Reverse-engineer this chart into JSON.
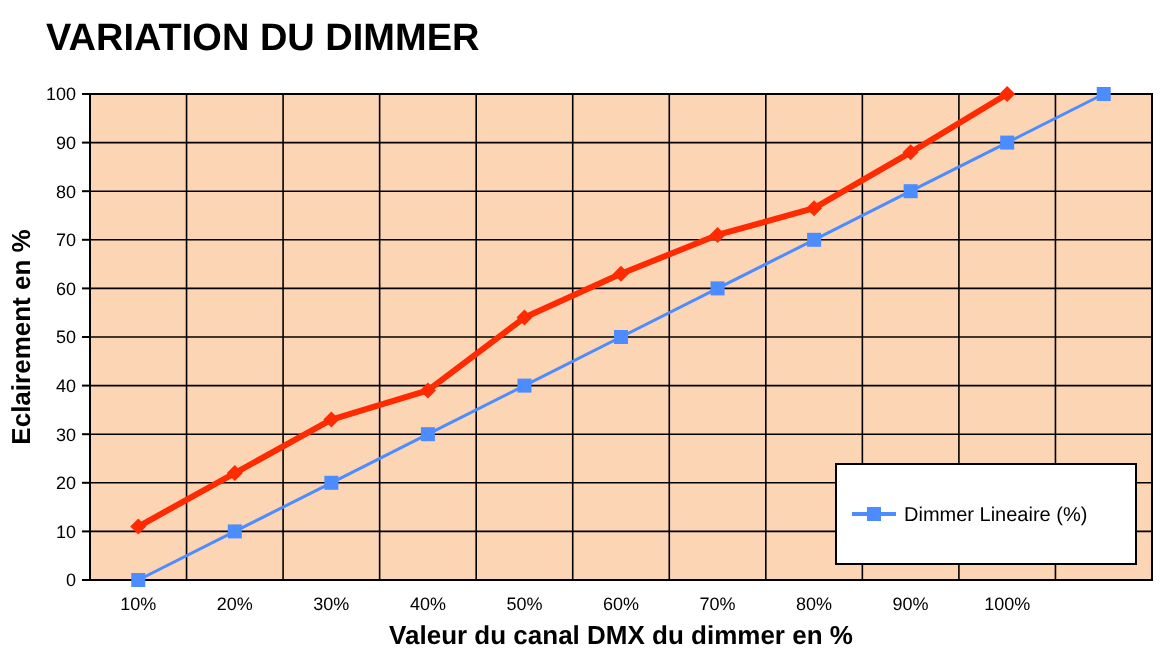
{
  "chart_data": {
    "type": "line",
    "title": "VARIATION DU DIMMER",
    "xlabel": "Valeur du canal DMX du dimmer en %",
    "ylabel": "Eclairement en %",
    "categories": [
      "10%",
      "20%",
      "30%",
      "40%",
      "50%",
      "60%",
      "70%",
      "80%",
      "90%",
      "100%",
      null
    ],
    "series": [
      {
        "color": "#ff2a00",
        "marker": "diamond",
        "values": [
          11,
          22,
          33,
          39,
          54,
          63,
          71,
          76.5,
          88,
          100,
          null
        ]
      },
      {
        "name": "Dimmer Lineaire (%)",
        "color": "#4d8cff",
        "marker": "square",
        "values": [
          0,
          10,
          20,
          30,
          40,
          50,
          60,
          70,
          80,
          90,
          100
        ]
      }
    ],
    "ylim": [
      0,
      100
    ],
    "yticks": [
      0,
      10,
      20,
      30,
      40,
      50,
      60,
      70,
      80,
      90,
      100
    ],
    "grid": true,
    "legend": "bottom right"
  }
}
